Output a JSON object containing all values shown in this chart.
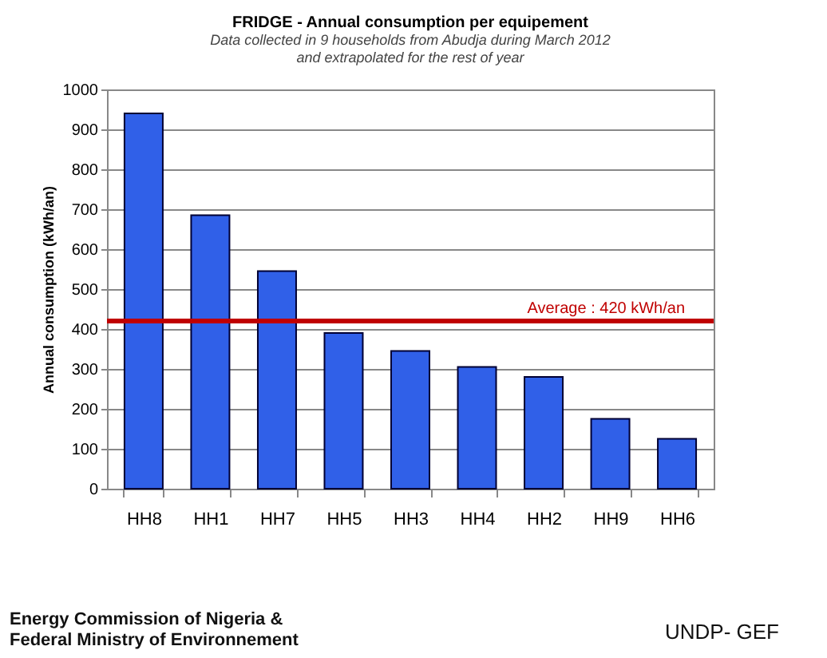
{
  "chart_data": {
    "type": "bar",
    "title": "FRIDGE - Annual consumption per equipement",
    "subtitle": "Data collected in 9 households  from Abudja during March 2012\nand extrapolated for the rest of year",
    "ylabel": "Annual consumption (kWh/an)",
    "categories": [
      "HH8",
      "HH1",
      "HH7",
      "HH5",
      "HH3",
      "HH4",
      "HH2",
      "HH9",
      "HH6"
    ],
    "values": [
      940,
      685,
      545,
      390,
      345,
      305,
      280,
      175,
      125
    ],
    "color": "#3060e8",
    "ylim": [
      0,
      1000
    ],
    "yticks": [
      0,
      100,
      200,
      300,
      400,
      500,
      600,
      700,
      800,
      900,
      1000
    ],
    "grid": "y",
    "ref_lines": [
      {
        "axis": "y",
        "value": 420,
        "label": "Average :  420 kWh/an",
        "color": "#c00000"
      }
    ],
    "annotations": [
      "Energy Commission of Nigeria &\nFederal Ministry of Environnement",
      "UNDP- GEF"
    ]
  }
}
